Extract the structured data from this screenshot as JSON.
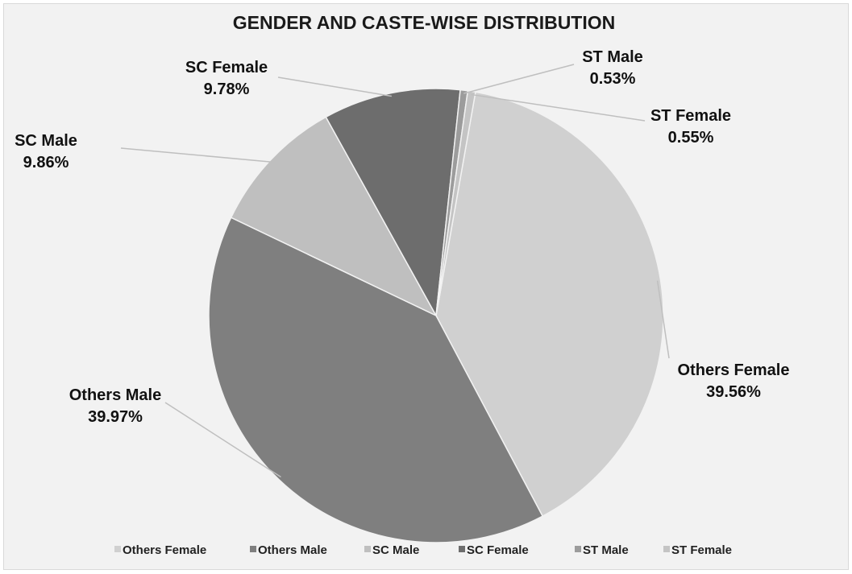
{
  "chart_data": {
    "type": "pie",
    "title": "GENDER AND CASTE-WISE DISTRIBUTION",
    "series": [
      {
        "name": "Others Female",
        "value": 39.56,
        "label": "39.56%",
        "color": "#d0d0d0"
      },
      {
        "name": "Others Male",
        "value": 39.97,
        "label": "39.97%",
        "color": "#7f7f7f"
      },
      {
        "name": "SC Male",
        "value": 9.86,
        "label": "9.86%",
        "color": "#bfbfbf"
      },
      {
        "name": "SC Female",
        "value": 9.78,
        "label": "9.78%",
        "color": "#6d6d6d"
      },
      {
        "name": "ST Male",
        "value": 0.53,
        "label": "0.53%",
        "color": "#9c9c9c"
      },
      {
        "name": "ST Female",
        "value": 0.55,
        "label": "0.55%",
        "color": "#c4c4c4"
      }
    ],
    "legend_position": "bottom",
    "start_angle_deg": 10,
    "direction": "clockwise"
  }
}
